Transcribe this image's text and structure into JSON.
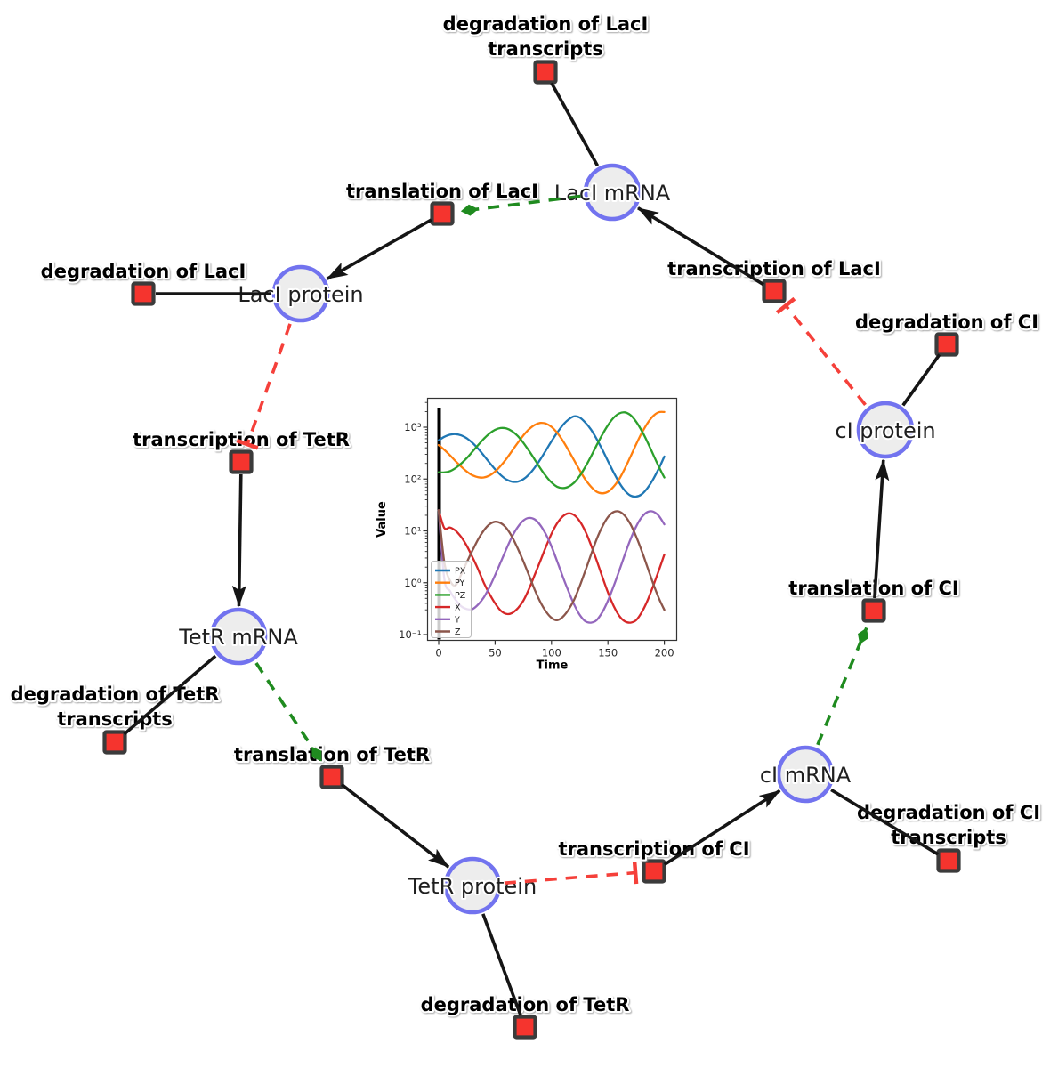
{
  "network": {
    "colors": {
      "species_fill": "#ededed",
      "species_stroke": "#7273ef",
      "reaction_fill": "#f5342e",
      "reaction_stroke": "#3b3b3b",
      "edge": "#151515",
      "activation": "#1f8b1f",
      "inhibition": "#f5403a"
    },
    "species": [
      {
        "id": "laci_mrna",
        "label": "LacI mRNA"
      },
      {
        "id": "laci_protein",
        "label": "LacI protein"
      },
      {
        "id": "tetr_mrna",
        "label": "TetR mRNA"
      },
      {
        "id": "tetr_protein",
        "label": "TetR protein"
      },
      {
        "id": "ci_mrna",
        "label": "cI mRNA"
      },
      {
        "id": "ci_protein",
        "label": "cI protein"
      }
    ],
    "reactions": [
      {
        "id": "deg_laci_tx",
        "lines": [
          "degradation of LacI",
          "transcripts"
        ]
      },
      {
        "id": "transl_laci",
        "lines": [
          "translation of LacI"
        ]
      },
      {
        "id": "deg_laci",
        "lines": [
          "degradation of LacI"
        ]
      },
      {
        "id": "txn_tetr",
        "lines": [
          "transcription of TetR"
        ]
      },
      {
        "id": "deg_tetr_tx",
        "lines": [
          "degradation of TetR",
          "transcripts"
        ]
      },
      {
        "id": "transl_tetr",
        "lines": [
          "translation of TetR"
        ]
      },
      {
        "id": "deg_tetr",
        "lines": [
          "degradation of TetR"
        ]
      },
      {
        "id": "txn_ci",
        "lines": [
          "transcription of CI"
        ]
      },
      {
        "id": "deg_ci_tx",
        "lines": [
          "degradation of CI",
          "transcripts"
        ]
      },
      {
        "id": "transl_ci",
        "lines": [
          "translation of CI"
        ]
      },
      {
        "id": "deg_ci",
        "lines": [
          "degradation of CI"
        ]
      },
      {
        "id": "txn_laci",
        "lines": [
          "transcription of LacI"
        ]
      }
    ],
    "edges": [
      {
        "from": "laci_mrna",
        "to": "deg_laci_tx",
        "type": "consumption"
      },
      {
        "from": "laci_mrna",
        "to": "transl_laci",
        "type": "activation"
      },
      {
        "from": "transl_laci",
        "to": "laci_protein",
        "type": "production"
      },
      {
        "from": "laci_protein",
        "to": "deg_laci",
        "type": "consumption"
      },
      {
        "from": "laci_protein",
        "to": "txn_tetr",
        "type": "inhibition"
      },
      {
        "from": "txn_tetr",
        "to": "tetr_mrna",
        "type": "production"
      },
      {
        "from": "tetr_mrna",
        "to": "deg_tetr_tx",
        "type": "consumption"
      },
      {
        "from": "tetr_mrna",
        "to": "transl_tetr",
        "type": "activation"
      },
      {
        "from": "transl_tetr",
        "to": "tetr_protein",
        "type": "production"
      },
      {
        "from": "tetr_protein",
        "to": "deg_tetr",
        "type": "consumption"
      },
      {
        "from": "tetr_protein",
        "to": "txn_ci",
        "type": "inhibition"
      },
      {
        "from": "txn_ci",
        "to": "ci_mrna",
        "type": "production"
      },
      {
        "from": "ci_mrna",
        "to": "deg_ci_tx",
        "type": "consumption"
      },
      {
        "from": "ci_mrna",
        "to": "transl_ci",
        "type": "activation"
      },
      {
        "from": "transl_ci",
        "to": "ci_protein",
        "type": "production"
      },
      {
        "from": "ci_protein",
        "to": "deg_ci",
        "type": "consumption"
      },
      {
        "from": "ci_protein",
        "to": "txn_laci",
        "type": "inhibition"
      },
      {
        "from": "txn_laci",
        "to": "laci_mrna",
        "type": "production"
      }
    ]
  },
  "chart_data": {
    "type": "line",
    "title": "",
    "xlabel": "Time",
    "ylabel": "Value",
    "yscale": "log",
    "xlim": [
      -10,
      211
    ],
    "ylim": [
      0.08,
      4000
    ],
    "grid": false,
    "legend_position": "lower left",
    "vline": {
      "x": 0,
      "color": "#000000"
    },
    "x_ticks": [
      0,
      50,
      100,
      150,
      200
    ],
    "y_tick_exponents": [
      -1,
      0,
      1,
      2,
      3
    ],
    "y_tick_labels": [
      "10⁻¹",
      "10⁰",
      "10¹",
      "10²",
      "10³"
    ],
    "x": [
      0,
      5,
      10,
      15,
      20,
      25,
      30,
      35,
      40,
      45,
      50,
      55,
      60,
      65,
      70,
      75,
      80,
      85,
      90,
      95,
      100,
      105,
      110,
      115,
      120,
      125,
      130,
      135,
      140,
      145,
      150,
      155,
      160,
      165,
      170,
      175,
      180,
      185,
      190,
      195,
      200
    ],
    "series": [
      {
        "name": "PX",
        "color": "#1f77b4",
        "values": [
          560,
          652,
          717,
          735,
          696,
          609,
          498,
          383,
          284,
          207,
          154,
          119,
          98,
          89,
          89,
          99,
          122,
          165,
          237,
          356,
          536,
          783,
          1100,
          1400,
          1620,
          1540,
          1230,
          900,
          593,
          370,
          222,
          135,
          85,
          60,
          48,
          46,
          51,
          67,
          98,
          158,
          271
        ]
      },
      {
        "name": "PY",
        "color": "#ff7f0e",
        "values": [
          452,
          366,
          287,
          221,
          173,
          139,
          118,
          108,
          107,
          117,
          139,
          180,
          245,
          348,
          496,
          692,
          911,
          1105,
          1208,
          1175,
          1015,
          783,
          549,
          361,
          230,
          147,
          98,
          71,
          57,
          53,
          57,
          71,
          100,
          159,
          271,
          467,
          776,
          1188,
          1633,
          1940,
          1969
        ]
      },
      {
        "name": "PZ",
        "color": "#2ca02c",
        "values": [
          135,
          134,
          142,
          163,
          199,
          255,
          339,
          454,
          598,
          755,
          890,
          964,
          947,
          840,
          678,
          502,
          352,
          239,
          162,
          114,
          86,
          71,
          67,
          71,
          85,
          115,
          172,
          274,
          448,
          721,
          1092,
          1517,
          1845,
          1935,
          1710,
          1279,
          851,
          519,
          302,
          175,
          107
        ]
      },
      {
        "name": "X",
        "color": "#d62728",
        "values": [
          25,
          11.4,
          11.6,
          10.1,
          7.6,
          5.1,
          3.1,
          1.8,
          1.0,
          0.61,
          0.4,
          0.29,
          0.25,
          0.26,
          0.32,
          0.45,
          0.75,
          1.4,
          2.6,
          4.9,
          8.8,
          14,
          19.1,
          21.8,
          20.2,
          15.4,
          9.8,
          5.3,
          2.7,
          1.3,
          0.65,
          0.36,
          0.23,
          0.18,
          0.17,
          0.19,
          0.27,
          0.45,
          0.85,
          1.7,
          3.5
        ]
      },
      {
        "name": "Y",
        "color": "#9467bd",
        "values": [
          25,
          1.2,
          0.69,
          0.47,
          0.35,
          0.31,
          0.31,
          0.38,
          0.52,
          0.82,
          1.4,
          2.5,
          4.5,
          7.7,
          11.8,
          15.8,
          17.8,
          16.7,
          13,
          8.6,
          5,
          2.6,
          1.3,
          0.69,
          0.38,
          0.24,
          0.18,
          0.17,
          0.19,
          0.27,
          0.45,
          0.85,
          1.7,
          3.5,
          6.9,
          12.1,
          18.4,
          23.1,
          23.6,
          19.6,
          13.4
        ]
      },
      {
        "name": "Z",
        "color": "#8c564b",
        "values": [
          25,
          2.5,
          1.1,
          0.89,
          1.45,
          2.5,
          4.2,
          6.9,
          10.2,
          13.4,
          15,
          14.1,
          11.3,
          7.7,
          4.6,
          2.6,
          1.4,
          0.74,
          0.43,
          0.28,
          0.21,
          0.19,
          0.22,
          0.3,
          0.47,
          0.86,
          1.7,
          3.5,
          6.9,
          12.1,
          18.4,
          23.1,
          23.6,
          19.6,
          13.4,
          7.8,
          4.1,
          2,
          0.98,
          0.51,
          0.3
        ]
      }
    ]
  }
}
